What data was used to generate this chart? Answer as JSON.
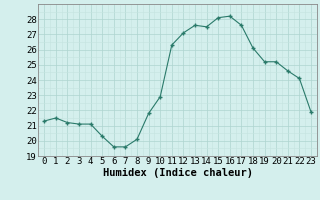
{
  "x": [
    0,
    1,
    2,
    3,
    4,
    5,
    6,
    7,
    8,
    9,
    10,
    11,
    12,
    13,
    14,
    15,
    16,
    17,
    18,
    19,
    20,
    21,
    22,
    23
  ],
  "y": [
    21.3,
    21.5,
    21.2,
    21.1,
    21.1,
    20.3,
    19.6,
    19.6,
    20.1,
    21.8,
    22.9,
    26.3,
    27.1,
    27.6,
    27.5,
    28.1,
    28.2,
    27.6,
    26.1,
    25.2,
    25.2,
    24.6,
    24.1,
    21.9
  ],
  "xlabel": "Humidex (Indice chaleur)",
  "ylim": [
    19,
    29
  ],
  "xlim": [
    -0.5,
    23.5
  ],
  "yticks": [
    19,
    20,
    21,
    22,
    23,
    24,
    25,
    26,
    27,
    28
  ],
  "xticks": [
    0,
    1,
    2,
    3,
    4,
    5,
    6,
    7,
    8,
    9,
    10,
    11,
    12,
    13,
    14,
    15,
    16,
    17,
    18,
    19,
    20,
    21,
    22,
    23
  ],
  "line_color": "#2a7a6a",
  "marker_color": "#2a7a6a",
  "bg_color": "#d4efed",
  "grid_major_color": "#aed4d0",
  "grid_minor_color": "#c4e4e0",
  "xlabel_fontsize": 7.5,
  "tick_fontsize": 6.5
}
